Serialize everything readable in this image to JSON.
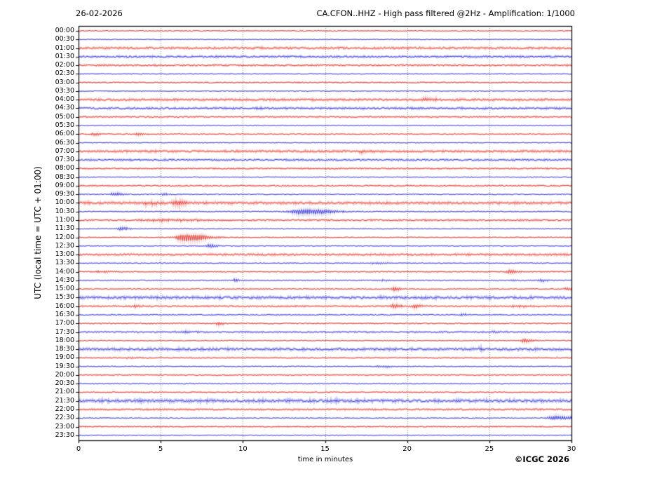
{
  "header": {
    "date": "26-02-2026",
    "title": "CA.CFON..HHZ - High pass filtered @2Hz - Amplification: 1/1000"
  },
  "footer": {
    "copyright": "©ICGC 2026"
  },
  "chart_data": {
    "type": "line",
    "subtype": "helicorder-daily-seismogram",
    "title": "CA.CFON..HHZ - High pass filtered @2Hz - Amplification: 1/1000",
    "date": "26-02-2026",
    "station": "CA.CFON..HHZ",
    "filter": "High pass filtered @2Hz",
    "amplification": "1/1000",
    "xlabel": "time in minutes",
    "ylabel": "UTC (local time = UTC + 01:00)",
    "x_range": [
      0,
      30
    ],
    "x_ticks": [
      0,
      5,
      10,
      15,
      20,
      25,
      30
    ],
    "grid": true,
    "grid_minutes": [
      5,
      10,
      15,
      20,
      25
    ],
    "minutes_per_row": 30,
    "colors": {
      "red": "#e8352b",
      "blue": "#3b38dd",
      "grid": "#888888",
      "frame": "#000000"
    },
    "rows": [
      {
        "label": "00:00",
        "color": "red",
        "noise": 0.55,
        "events": []
      },
      {
        "label": "00:30",
        "color": "blue",
        "noise": 0.45,
        "events": []
      },
      {
        "label": "01:00",
        "color": "red",
        "noise": 0.95,
        "events": []
      },
      {
        "label": "01:30",
        "color": "blue",
        "noise": 0.95,
        "events": []
      },
      {
        "label": "02:00",
        "color": "red",
        "noise": 0.85,
        "events": []
      },
      {
        "label": "02:30",
        "color": "blue",
        "noise": 0.5,
        "events": []
      },
      {
        "label": "03:00",
        "color": "red",
        "noise": 0.65,
        "events": []
      },
      {
        "label": "03:30",
        "color": "blue",
        "noise": 0.5,
        "events": []
      },
      {
        "label": "04:00",
        "color": "red",
        "noise": 1.0,
        "events": [
          {
            "t": 21.0,
            "dur": 0.8,
            "amp": 1.4
          }
        ]
      },
      {
        "label": "04:30",
        "color": "blue",
        "noise": 0.95,
        "events": []
      },
      {
        "label": "05:00",
        "color": "red",
        "noise": 0.75,
        "events": []
      },
      {
        "label": "05:30",
        "color": "blue",
        "noise": 0.45,
        "events": []
      },
      {
        "label": "06:00",
        "color": "red",
        "noise": 0.6,
        "events": [
          {
            "t": 0.9,
            "dur": 0.3,
            "amp": 1.8
          },
          {
            "t": 3.6,
            "dur": 0.35,
            "amp": 1.8
          }
        ]
      },
      {
        "label": "06:30",
        "color": "blue",
        "noise": 0.5,
        "events": []
      },
      {
        "label": "07:00",
        "color": "red",
        "noise": 1.0,
        "events": [
          {
            "t": 17.3,
            "dur": 0.6,
            "amp": 1.2
          }
        ]
      },
      {
        "label": "07:30",
        "color": "blue",
        "noise": 0.9,
        "events": []
      },
      {
        "label": "08:00",
        "color": "red",
        "noise": 0.75,
        "events": []
      },
      {
        "label": "08:30",
        "color": "blue",
        "noise": 0.5,
        "events": []
      },
      {
        "label": "09:00",
        "color": "red",
        "noise": 0.75,
        "events": []
      },
      {
        "label": "09:30",
        "color": "blue",
        "noise": 0.55,
        "events": [
          {
            "t": 2.15,
            "dur": 0.45,
            "amp": 2.4
          },
          {
            "t": 5.2,
            "dur": 0.3,
            "amp": 1.8
          }
        ]
      },
      {
        "label": "10:00",
        "color": "red",
        "noise": 1.1,
        "events": [
          {
            "t": 4.2,
            "dur": 0.9,
            "amp": 1.4
          },
          {
            "t": 6.0,
            "dur": 0.5,
            "amp": 2.2
          }
        ]
      },
      {
        "label": "10:30",
        "color": "blue",
        "noise": 0.6,
        "events": [
          {
            "t": 13.4,
            "dur": 1.2,
            "amp": 3.2
          },
          {
            "t": 14.8,
            "dur": 1.2,
            "amp": 1.4
          }
        ]
      },
      {
        "label": "11:00",
        "color": "red",
        "noise": 0.85,
        "events": [
          {
            "t": 4.8,
            "dur": 2.2,
            "amp": 1.1
          }
        ]
      },
      {
        "label": "11:30",
        "color": "blue",
        "noise": 0.5,
        "events": [
          {
            "t": 2.55,
            "dur": 0.45,
            "amp": 2.4
          }
        ]
      },
      {
        "label": "12:00",
        "color": "red",
        "noise": 0.55,
        "events": [
          {
            "t": 6.35,
            "dur": 0.9,
            "amp": 4.6
          },
          {
            "t": 7.4,
            "dur": 1.2,
            "amp": 1.2
          }
        ]
      },
      {
        "label": "12:30",
        "color": "blue",
        "noise": 0.5,
        "events": [
          {
            "t": 7.95,
            "dur": 0.4,
            "amp": 2.2
          }
        ]
      },
      {
        "label": "13:00",
        "color": "red",
        "noise": 0.95,
        "events": []
      },
      {
        "label": "13:30",
        "color": "blue",
        "noise": 0.55,
        "events": [
          {
            "t": 18.0,
            "dur": 0.9,
            "amp": 0.9
          }
        ]
      },
      {
        "label": "14:00",
        "color": "red",
        "noise": 0.65,
        "events": [
          {
            "t": 1.3,
            "dur": 0.6,
            "amp": 1.1
          },
          {
            "t": 26.2,
            "dur": 0.4,
            "amp": 2.4
          }
        ]
      },
      {
        "label": "14:30",
        "color": "blue",
        "noise": 0.55,
        "events": [
          {
            "t": 9.5,
            "dur": 0.3,
            "amp": 1.9
          },
          {
            "t": 18.5,
            "dur": 0.4,
            "amp": 1.1
          },
          {
            "t": 26.3,
            "dur": 0.3,
            "amp": 1.1
          },
          {
            "t": 28.1,
            "dur": 0.35,
            "amp": 1.9
          }
        ]
      },
      {
        "label": "15:00",
        "color": "red",
        "noise": 0.65,
        "events": [
          {
            "t": 19.15,
            "dur": 0.4,
            "amp": 2.4
          },
          {
            "t": 29.7,
            "dur": 0.3,
            "amp": 1.9
          }
        ]
      },
      {
        "label": "15:30",
        "color": "blue",
        "noise": 1.15,
        "events": []
      },
      {
        "label": "16:00",
        "color": "red",
        "noise": 0.75,
        "events": [
          {
            "t": 3.5,
            "dur": 0.3,
            "amp": 1.4
          },
          {
            "t": 19.2,
            "dur": 0.4,
            "amp": 2.3
          },
          {
            "t": 20.4,
            "dur": 0.4,
            "amp": 1.9
          },
          {
            "t": 26.7,
            "dur": 0.9,
            "amp": 1.1
          }
        ]
      },
      {
        "label": "16:30",
        "color": "blue",
        "noise": 0.65,
        "events": [
          {
            "t": 23.3,
            "dur": 0.4,
            "amp": 1.1
          }
        ]
      },
      {
        "label": "17:00",
        "color": "red",
        "noise": 0.65,
        "events": [
          {
            "t": 8.5,
            "dur": 0.3,
            "amp": 1.9
          }
        ]
      },
      {
        "label": "17:30",
        "color": "blue",
        "noise": 0.75,
        "events": [
          {
            "t": 6.3,
            "dur": 0.8,
            "amp": 1.1
          },
          {
            "t": 25.3,
            "dur": 0.5,
            "amp": 1.1
          }
        ]
      },
      {
        "label": "18:00",
        "color": "red",
        "noise": 0.55,
        "events": [
          {
            "t": 27.1,
            "dur": 0.5,
            "amp": 2.4
          }
        ]
      },
      {
        "label": "18:30",
        "color": "blue",
        "noise": 1.15,
        "events": [
          {
            "t": 24.4,
            "dur": 0.5,
            "amp": 1.2
          }
        ]
      },
      {
        "label": "19:00",
        "color": "red",
        "noise": 0.65,
        "events": [
          {
            "t": 3.0,
            "dur": 0.3,
            "amp": 1.4
          }
        ]
      },
      {
        "label": "19:30",
        "color": "blue",
        "noise": 0.55,
        "events": [
          {
            "t": 18.4,
            "dur": 0.6,
            "amp": 1.4
          }
        ]
      },
      {
        "label": "20:00",
        "color": "red",
        "noise": 0.65,
        "events": []
      },
      {
        "label": "20:30",
        "color": "blue",
        "noise": 0.55,
        "events": []
      },
      {
        "label": "21:00",
        "color": "red",
        "noise": 0.65,
        "events": []
      },
      {
        "label": "21:30",
        "color": "blue",
        "noise": 1.25,
        "events": []
      },
      {
        "label": "22:00",
        "color": "red",
        "noise": 0.85,
        "events": []
      },
      {
        "label": "22:30",
        "color": "blue",
        "noise": 0.55,
        "events": [
          {
            "t": 29.0,
            "dur": 1.0,
            "amp": 2.4
          }
        ]
      },
      {
        "label": "23:00",
        "color": "red",
        "noise": 0.65,
        "events": []
      },
      {
        "label": "23:30",
        "color": "blue",
        "noise": 0.45,
        "events": []
      }
    ]
  }
}
